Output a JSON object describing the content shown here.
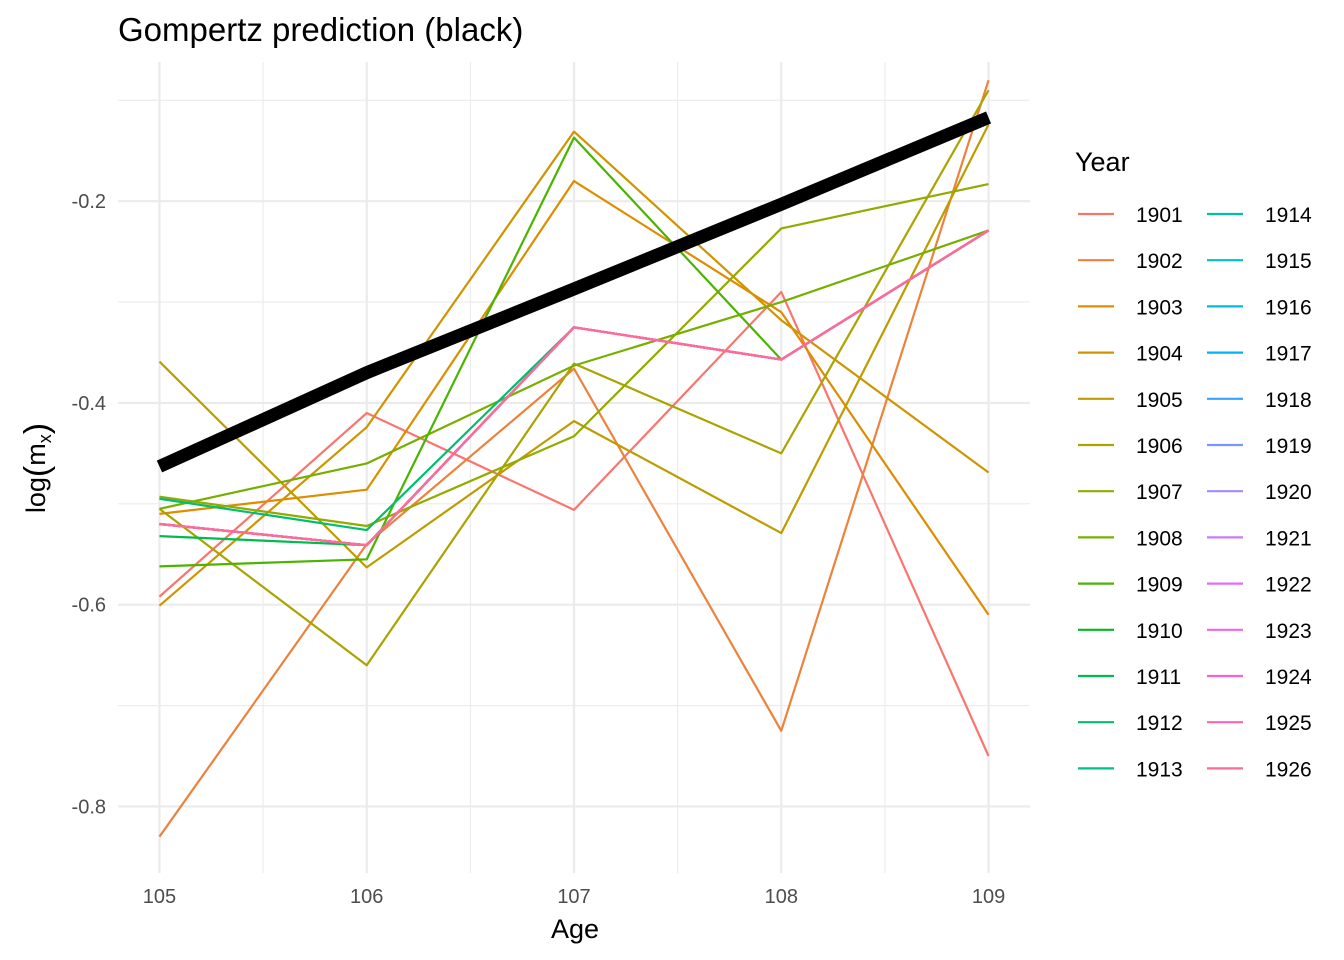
{
  "chart_data": {
    "type": "line",
    "title": "Gompertz prediction (black)",
    "xlabel": "Age",
    "ylabel_main": "log",
    "ylabel_m": "m",
    "ylabel_sub": "x",
    "legend_title": "Year",
    "legend_position": "right",
    "grid": true,
    "x": [
      105,
      106,
      107,
      108,
      109
    ],
    "x_ticks": [
      "105",
      "106",
      "107",
      "108",
      "109"
    ],
    "y_ticks": [
      {
        "value": -0.8,
        "label": "-0.8"
      },
      {
        "value": -0.6,
        "label": "-0.6"
      },
      {
        "value": -0.4,
        "label": "-0.4"
      },
      {
        "value": -0.2,
        "label": "-0.2"
      }
    ],
    "xlim": [
      104.8,
      109.2
    ],
    "ylim": [
      -0.866,
      -0.062
    ],
    "prediction": {
      "color": "#000000",
      "values": [
        -0.463,
        -0.37,
        -0.287,
        -0.203,
        -0.117
      ]
    },
    "series": [
      {
        "name": "1901",
        "color": "#F8766D",
        "values": [
          -0.592,
          -0.41,
          -0.506,
          -0.29,
          -0.75
        ]
      },
      {
        "name": "1902",
        "color": "#EC823C",
        "values": [
          -0.83,
          -0.54,
          -0.366,
          -0.725,
          -0.08
        ]
      },
      {
        "name": "1903",
        "color": "#DE8C00",
        "values": [
          -0.51,
          -0.486,
          -0.18,
          -0.31,
          -0.61
        ]
      },
      {
        "name": "1904",
        "color": "#CF9400",
        "values": [
          -0.601,
          -0.424,
          -0.131,
          -0.318,
          -0.469
        ]
      },
      {
        "name": "1905",
        "color": "#BE9C00",
        "values": [
          -0.359,
          -0.563,
          -0.418,
          -0.529,
          -0.124
        ]
      },
      {
        "name": "1906",
        "color": "#AAA300",
        "values": [
          -0.505,
          -0.66,
          -0.361,
          -0.45,
          -0.09
        ]
      },
      {
        "name": "1907",
        "color": "#93AA00",
        "values": [
          -0.493,
          -0.522,
          -0.433,
          -0.227,
          -0.183
        ]
      },
      {
        "name": "1908",
        "color": "#77AF00",
        "values": [
          -0.505,
          -0.46,
          -0.363,
          -0.3,
          -0.229
        ]
      },
      {
        "name": "1909",
        "color": "#4BB400",
        "values": [
          -0.562,
          -0.555,
          -0.137,
          -0.357,
          null
        ]
      },
      {
        "name": "1910",
        "color": "#00B81F",
        "values": [
          null,
          null,
          null,
          null,
          null
        ]
      },
      {
        "name": "1911",
        "color": "#00BB4E",
        "values": [
          -0.532,
          -0.541,
          -0.325,
          -0.357,
          -0.229
        ]
      },
      {
        "name": "1912",
        "color": "#00BE6D",
        "values": [
          -0.495,
          -0.526,
          -0.325,
          -0.357,
          -0.229
        ]
      },
      {
        "name": "1913",
        "color": "#00C08B",
        "values": [
          -0.52,
          -0.541,
          -0.325,
          -0.357,
          -0.229
        ]
      },
      {
        "name": "1914",
        "color": "#00C1A6",
        "values": [
          -0.52,
          -0.541,
          -0.325,
          -0.357,
          -0.229
        ]
      },
      {
        "name": "1915",
        "color": "#00C0C0",
        "values": [
          -0.52,
          -0.541,
          -0.325,
          -0.357,
          -0.229
        ]
      },
      {
        "name": "1916",
        "color": "#00BCD8",
        "values": [
          -0.52,
          -0.541,
          -0.325,
          -0.357,
          -0.229
        ]
      },
      {
        "name": "1917",
        "color": "#00B4EF",
        "values": [
          -0.52,
          -0.541,
          -0.325,
          -0.357,
          -0.229
        ]
      },
      {
        "name": "1918",
        "color": "#35A2FF",
        "values": [
          -0.52,
          -0.541,
          -0.325,
          -0.357,
          -0.229
        ]
      },
      {
        "name": "1919",
        "color": "#7C96FF",
        "values": [
          -0.52,
          -0.541,
          -0.325,
          -0.357,
          -0.229
        ]
      },
      {
        "name": "1920",
        "color": "#A58AFF",
        "values": [
          -0.52,
          -0.541,
          -0.325,
          -0.357,
          -0.229
        ]
      },
      {
        "name": "1921",
        "color": "#C77CFF",
        "values": [
          -0.52,
          -0.541,
          -0.325,
          -0.357,
          -0.229
        ]
      },
      {
        "name": "1922",
        "color": "#E36EF6",
        "values": [
          -0.52,
          -0.541,
          -0.325,
          -0.357,
          -0.229
        ]
      },
      {
        "name": "1923",
        "color": "#F166E8",
        "values": [
          -0.52,
          -0.541,
          -0.325,
          -0.357,
          -0.229
        ]
      },
      {
        "name": "1924",
        "color": "#FB61D7",
        "values": [
          -0.52,
          -0.541,
          -0.325,
          -0.357,
          -0.229
        ]
      },
      {
        "name": "1925",
        "color": "#FF63B6",
        "values": [
          -0.52,
          -0.541,
          -0.325,
          -0.357,
          -0.229
        ]
      },
      {
        "name": "1926",
        "color": "#FF6C91",
        "values": [
          -0.52,
          -0.541,
          -0.325,
          -0.357,
          -0.229
        ]
      }
    ]
  }
}
